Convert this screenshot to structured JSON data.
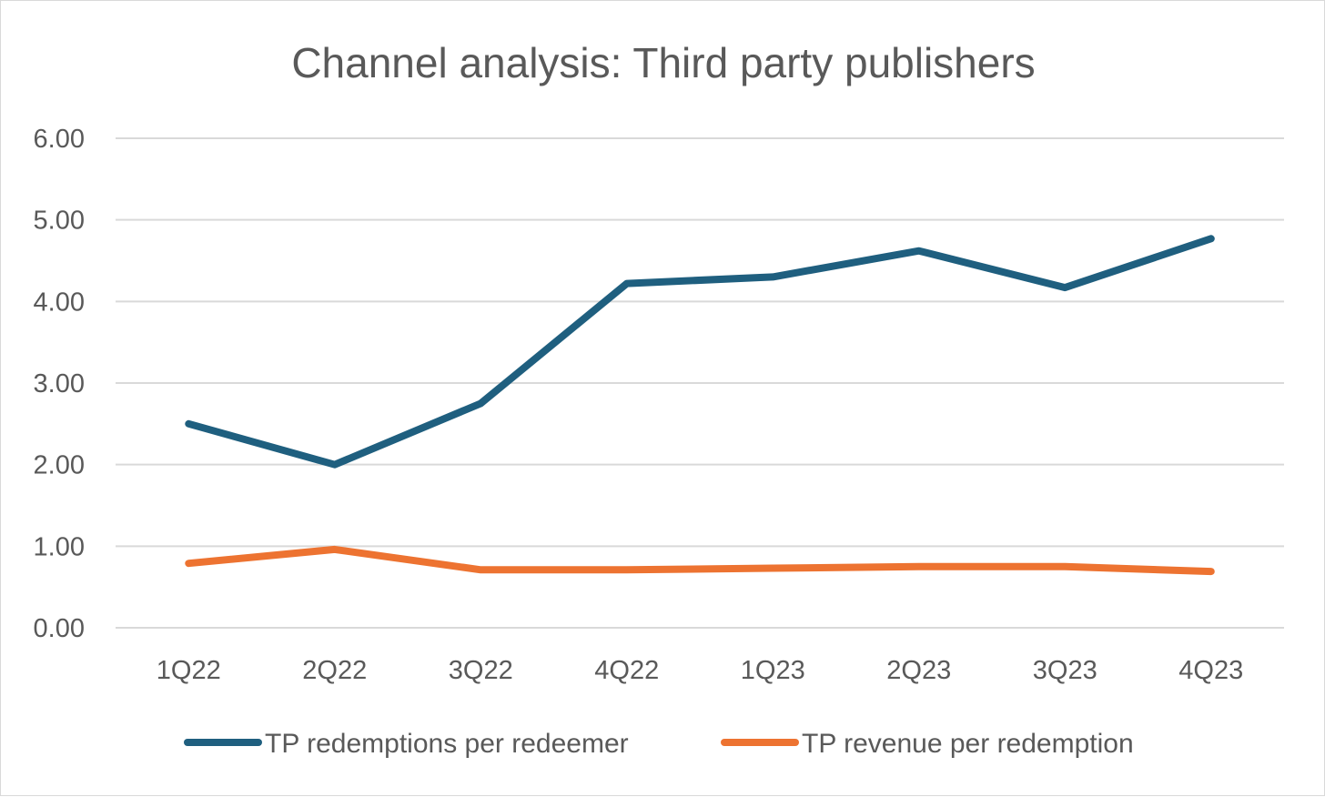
{
  "chart_data": {
    "type": "line",
    "title": "Channel analysis: Third party publishers",
    "categories": [
      "1Q22",
      "2Q22",
      "3Q22",
      "4Q22",
      "1Q23",
      "2Q23",
      "3Q23",
      "4Q23"
    ],
    "y_ticks": [
      "0.00",
      "1.00",
      "2.00",
      "3.00",
      "4.00",
      "5.00",
      "6.00"
    ],
    "ylim": [
      0,
      6
    ],
    "grid": true,
    "legend_position": "bottom",
    "series": [
      {
        "name": "TP redemptions per redeemer",
        "color": "#1f5f7f",
        "values": [
          2.5,
          2.0,
          2.75,
          4.22,
          4.3,
          4.62,
          4.17,
          4.77
        ]
      },
      {
        "name": "TP revenue per redemption",
        "color": "#ed7331",
        "values": [
          0.79,
          0.96,
          0.71,
          0.71,
          0.73,
          0.75,
          0.75,
          0.69
        ]
      }
    ]
  }
}
